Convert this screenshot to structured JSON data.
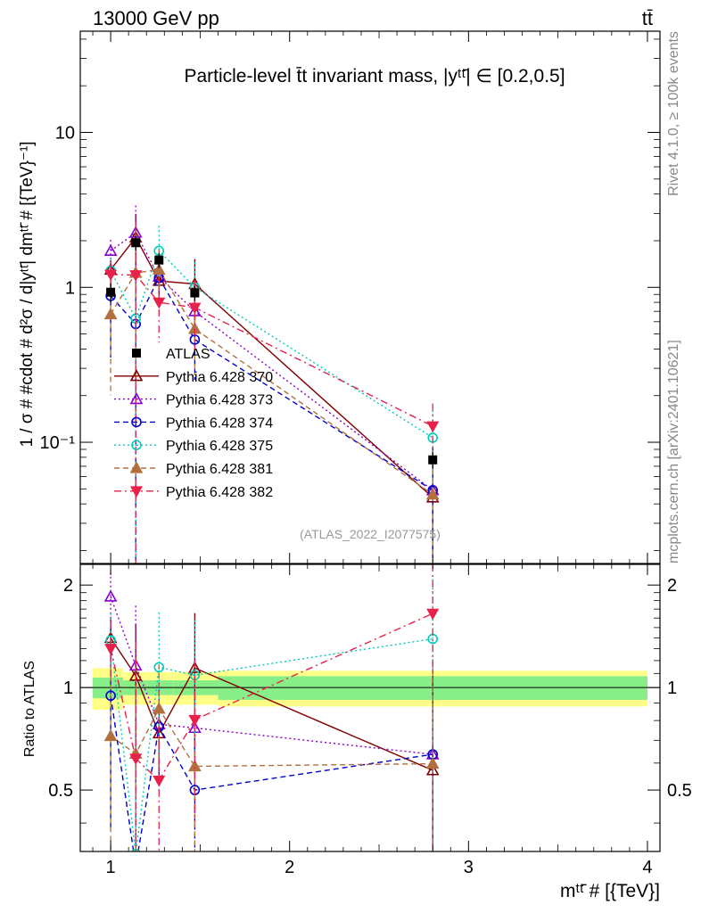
{
  "header": {
    "left": "13000 GeV pp",
    "right": "tt̄"
  },
  "side_labels": {
    "top": "Rivet 4.1.0, ≥ 100k events",
    "bottom": "mcplots.cern.ch [arXiv:2401.10621]"
  },
  "chart_data": {
    "type": "line",
    "title": "Particle-level t̄t invariant mass, |yᵗᵗ̄| ∈ [0.2,0.5]",
    "watermark": "(ATLAS_2022_I2077575)",
    "xlabel": "mᵗᵗ̄ # [{TeV}]",
    "ylabel": "1 / σ # #cdot # d²σ / d|yᵗᵗ̄| dmᵗᵗ̄ # [{TeV}⁻¹]",
    "ratio_ylabel": "Ratio to ATLAS",
    "xlim": [
      0.83,
      4.07
    ],
    "ylim": [
      0.0165,
      45
    ],
    "ratio_ylim": [
      0.33,
      2.3
    ],
    "x_ticks": [
      "1",
      "2",
      "3",
      "4"
    ],
    "y_ticks": [
      "10⁻¹",
      "1",
      "10"
    ],
    "ratio_ticks": [
      "0.5",
      "1",
      "2"
    ],
    "x": [
      1.0,
      1.14,
      1.27,
      1.47,
      2.8
    ],
    "bin_edges": [
      0.9,
      1.07,
      1.2,
      1.35,
      1.6,
      4.0
    ],
    "data": {
      "name": "ATLAS",
      "values": [
        0.93,
        1.94,
        1.5,
        0.92,
        0.077
      ],
      "rel_err_stat": [
        0.07,
        0.05,
        0.05,
        0.05,
        0.08
      ],
      "rel_err_total": [
        0.14,
        0.11,
        0.11,
        0.11,
        0.12
      ]
    },
    "series": [
      {
        "name": "Pythia 6.428 370",
        "color": "#800000",
        "marker": "triangle-open",
        "dash": "solid",
        "values": [
          1.3,
          2.1,
          1.1,
          1.05,
          0.044
        ],
        "rel_err": [
          0.15,
          0.42,
          0.25,
          0.45,
          0.9
        ]
      },
      {
        "name": "Pythia 6.428 373",
        "color": "#8800cc",
        "marker": "triangle-open",
        "dash": "dotted",
        "values": [
          1.72,
          2.25,
          1.17,
          0.7,
          0.049
        ],
        "rel_err": [
          0.18,
          0.5,
          0.3,
          0.45,
          0.9
        ]
      },
      {
        "name": "Pythia 6.428 374",
        "color": "#0000cc",
        "marker": "circle-open",
        "dash": "dashed",
        "values": [
          0.88,
          0.58,
          1.15,
          0.46,
          0.049
        ],
        "rel_err": [
          0.6,
          1.2,
          0.35,
          0.45,
          0.9
        ]
      },
      {
        "name": "Pythia 6.428 375",
        "color": "#00ccbb",
        "marker": "circle-open",
        "dash": "dotted",
        "values": [
          1.28,
          0.63,
          1.72,
          1.0,
          0.107
        ],
        "rel_err": [
          0.2,
          1.2,
          0.45,
          0.45,
          0.5
        ]
      },
      {
        "name": "Pythia 6.428 381",
        "color": "#b07040",
        "marker": "triangle-filled",
        "dash": "dashed",
        "values": [
          0.67,
          1.24,
          1.3,
          0.54,
          0.046
        ],
        "rel_err": [
          0.7,
          0.9,
          0.35,
          0.5,
          0.9
        ]
      },
      {
        "name": "Pythia 6.428 382",
        "color": "#e8204a",
        "marker": "triangle-down-filled",
        "dash": "dashdot",
        "values": [
          1.21,
          1.2,
          0.8,
          0.74,
          0.127
        ],
        "rel_err": [
          0.2,
          1.2,
          0.45,
          0.5,
          0.4
        ]
      }
    ]
  }
}
